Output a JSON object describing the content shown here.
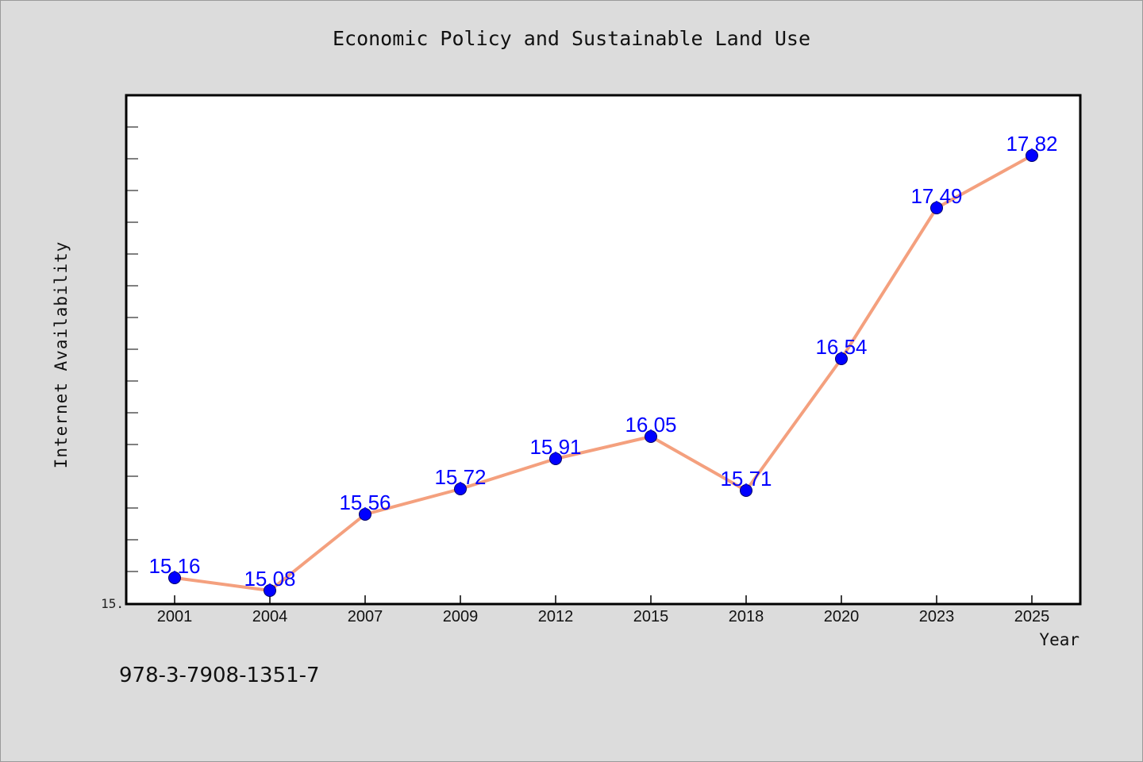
{
  "chart_data": {
    "type": "line",
    "title": "Economic Policy and Sustainable Land Use",
    "xlabel": "Year",
    "ylabel": "Internet Availability",
    "categories": [
      "2001",
      "2004",
      "2007",
      "2009",
      "2012",
      "2015",
      "2018",
      "2020",
      "2023",
      "2025"
    ],
    "series": [
      {
        "values": [
          15.16,
          15.08,
          15.56,
          15.72,
          15.91,
          16.05,
          15.71,
          16.54,
          17.49,
          17.82
        ],
        "line_color": "#f4a07e",
        "marker_color": "#0000ff"
      }
    ],
    "data_labels": [
      "15.16",
      "15.08",
      "15.56",
      "15.72",
      "15.91",
      "16.05",
      "15.71",
      "16.54",
      "17.49",
      "17.82"
    ],
    "y_tick_labels": [
      "15."
    ],
    "ylim": [
      15.0,
      18.2
    ],
    "y_minor_tick_step": 0.2,
    "grid": false,
    "legend": "none",
    "label_color": "#0000ff"
  },
  "footer": {
    "isbn": "978-3-7908-1351-7"
  }
}
